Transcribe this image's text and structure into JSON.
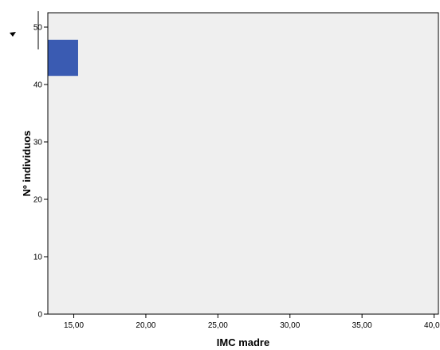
{
  "chart_data": {
    "type": "bar",
    "title": "",
    "xlabel": "IMC madre",
    "ylabel": "Nº individuos",
    "xlim": [
      13.2,
      40.3
    ],
    "ylim": [
      0,
      52.5
    ],
    "x_ticks": [
      {
        "value": 15,
        "label": "15,00"
      },
      {
        "value": 20,
        "label": "20,00"
      },
      {
        "value": 25,
        "label": "25,00"
      },
      {
        "value": 30,
        "label": "30,00"
      },
      {
        "value": 35,
        "label": "35,00"
      },
      {
        "value": 40,
        "label": "40,00"
      }
    ],
    "y_ticks": [
      {
        "value": 0,
        "label": "0"
      },
      {
        "value": 10,
        "label": "10"
      },
      {
        "value": 20,
        "label": "20"
      },
      {
        "value": 30,
        "label": "30"
      },
      {
        "value": 40,
        "label": "40"
      },
      {
        "value": 50,
        "label": "50"
      }
    ],
    "bars": [
      {
        "x0": 13.2,
        "x1": 15.3,
        "y0": 41.5,
        "y1": 47.8
      }
    ],
    "bar_color": "#3a5bb2",
    "plot_background": "#efefef",
    "grid": false,
    "legend": "none"
  }
}
